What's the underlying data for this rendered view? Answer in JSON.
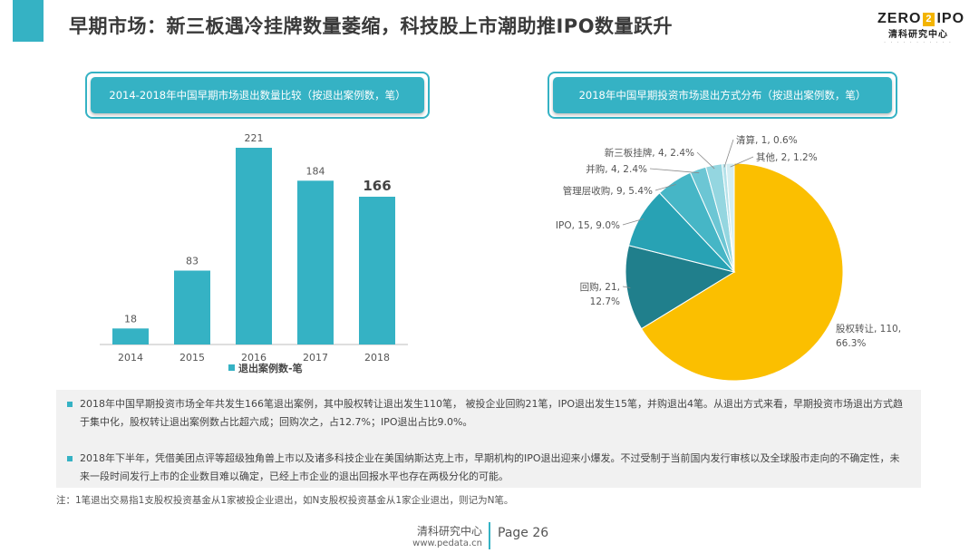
{
  "header": {
    "title": "早期市场：新三板遇冷挂牌数量萎缩，科技股上市潮助推IPO数量跃升",
    "logo_main_left": "ZERO",
    "logo_main_box": "2",
    "logo_main_right": "IPO",
    "logo_sub": "清科研究中心"
  },
  "colors": {
    "accent": "#35b2c4",
    "pie": [
      "#fbbf00",
      "#207f8c",
      "#28a2b4",
      "#46b6c6",
      "#6cc6d4",
      "#94d6e0",
      "#b6e2ea",
      "#d4eef2"
    ]
  },
  "chart_data": [
    {
      "type": "bar",
      "title": "2014-2018年中国早期市场退出数量比较（按退出案例数，笔）",
      "categories": [
        "2014",
        "2015",
        "2016",
        "2017",
        "2018"
      ],
      "series": [
        {
          "name": "退出案例数-笔",
          "values": [
            18,
            83,
            221,
            184,
            166
          ]
        }
      ],
      "value_labels": [
        "18",
        "83",
        "221",
        "184",
        "166"
      ],
      "highlight_index": 4,
      "ylim": [
        0,
        221
      ],
      "color": "#35b2c4",
      "legend": "bottom"
    },
    {
      "type": "pie",
      "title": "2018年中国早期投资市场退出方式分布（按退出案例数，笔）",
      "slices": [
        {
          "name": "股权转让",
          "value": 110,
          "percent": "66.3%",
          "label": "股权转让, 110, 66.3%",
          "label_lines": [
            "股权转让, 110,",
            "66.3%"
          ]
        },
        {
          "name": "回购",
          "value": 21,
          "percent": "12.7%",
          "label": "回购, 21, 12.7%",
          "label_lines": [
            "回购, 21,",
            "12.7%"
          ]
        },
        {
          "name": "IPO",
          "value": 15,
          "percent": "9.0%",
          "label": "IPO, 15, 9.0%",
          "label_lines": [
            "IPO, 15, 9.0%"
          ]
        },
        {
          "name": "管理层收购",
          "value": 9,
          "percent": "5.4%",
          "label": "管理层收购, 9, 5.4%",
          "label_lines": [
            "管理层收购, 9, 5.4%"
          ]
        },
        {
          "name": "并购",
          "value": 4,
          "percent": "2.4%",
          "label": "并购, 4, 2.4%",
          "label_lines": [
            "并购, 4, 2.4%"
          ]
        },
        {
          "name": "新三板挂牌",
          "value": 4,
          "percent": "2.4%",
          "label": "新三板挂牌, 4, 2.4%",
          "label_lines": [
            "新三板挂牌, 4, 2.4%"
          ]
        },
        {
          "name": "清算",
          "value": 1,
          "percent": "0.6%",
          "label": "清算, 1, 0.6%",
          "label_lines": [
            "清算, 1, 0.6%"
          ]
        },
        {
          "name": "其他",
          "value": 2,
          "percent": "1.2%",
          "label": "其他, 2, 1.2%",
          "label_lines": [
            "其他, 2, 1.2%"
          ]
        }
      ]
    }
  ],
  "notes": [
    "2018年中国早期投资市场全年共发生166笔退出案例，其中股权转让退出发生110笔， 被投企业回购21笔，IPO退出发生15笔，并购退出4笔。从退出方式来看，早期投资市场退出方式趋于集中化，股权转让退出案例数占比超六成；回购次之，占12.7%；IPO退出占比9.0%。",
    "2018年下半年，凭借美团点评等超级独角兽上市以及诸多科技企业在美国纳斯达克上市，早期机构的IPO退出迎来小爆发。不过受制于当前国内发行审核以及全球股市走向的不确定性，未来一段时间发行上市的企业数目难以确定，已经上市企业的退出回报水平也存在两极分化的可能。"
  ],
  "footnote": "注：1笔退出交易指1支股权投资基金从1家被投企业退出，如N支股权投资基金从1家企业退出，则记为N笔。",
  "footer": {
    "org": "清科研究中心",
    "url": "www.pedata.cn",
    "page": "Page 26"
  }
}
